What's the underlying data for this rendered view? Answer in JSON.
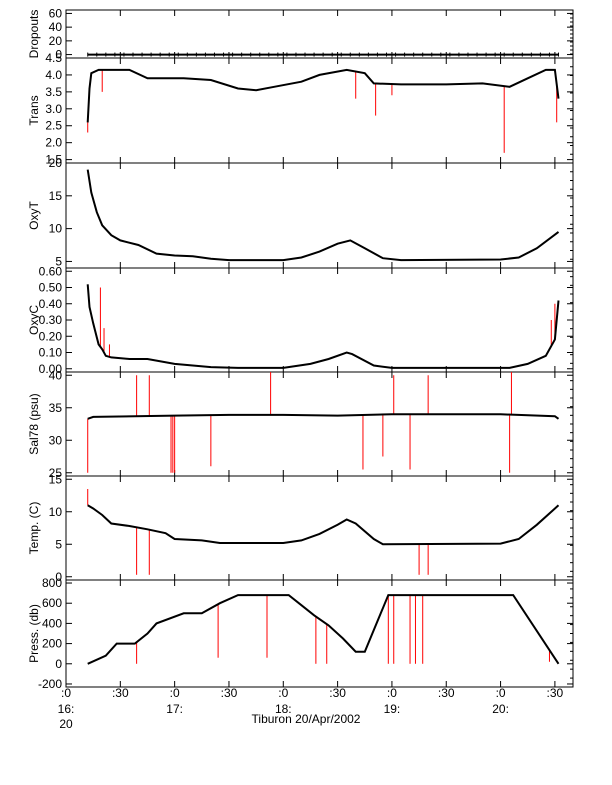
{
  "chart_data": {
    "type": "line",
    "footer_label": "Tiburon 20/Apr/2002",
    "x_axis": {
      "range": [
        "16:00",
        "20:40"
      ],
      "ticks": [
        {
          "t": "16:00",
          "label": ":0",
          "sublabel": "16:",
          "sublabel2": "20"
        },
        {
          "t": "16:30",
          "label": ":30"
        },
        {
          "t": "17:00",
          "label": ":0",
          "sublabel": "17:"
        },
        {
          "t": "17:30",
          "label": ":30"
        },
        {
          "t": "18:00",
          "label": ":0",
          "sublabel": "18:"
        },
        {
          "t": "18:30",
          "label": ":30"
        },
        {
          "t": "19:00",
          "label": ":0",
          "sublabel": "19:"
        },
        {
          "t": "19:30",
          "label": ":30"
        },
        {
          "t": "20:00",
          "label": ":0",
          "sublabel": "20:"
        },
        {
          "t": "20:30",
          "label": ":30"
        }
      ]
    },
    "line_color": "#000000",
    "spike_color": "#ff0000",
    "panels": [
      {
        "ylabel": "Dropouts",
        "ylim": [
          -5,
          65
        ],
        "ticks": [
          0,
          20,
          40,
          60
        ],
        "tick_labels": [
          "0",
          "20",
          "40",
          "60"
        ],
        "series": [
          [
            "16:12",
            0
          ],
          [
            "20:32",
            0
          ]
        ],
        "spikes": []
      },
      {
        "ylabel": "Trans",
        "ylim": [
          1.4,
          4.5
        ],
        "ticks": [
          1.5,
          2.0,
          2.5,
          3.0,
          3.5,
          4.0,
          4.5
        ],
        "tick_labels": [
          "1.5",
          "2.0",
          "2.5",
          "3.0",
          "3.5",
          "4.0",
          "4.5"
        ],
        "series": [
          [
            "16:12",
            2.6
          ],
          [
            "16:13",
            3.6
          ],
          [
            "16:14",
            4.05
          ],
          [
            "16:18",
            4.15
          ],
          [
            "16:35",
            4.15
          ],
          [
            "16:45",
            3.9
          ],
          [
            "17:05",
            3.9
          ],
          [
            "17:20",
            3.85
          ],
          [
            "17:35",
            3.6
          ],
          [
            "17:45",
            3.55
          ],
          [
            "17:55",
            3.65
          ],
          [
            "18:10",
            3.8
          ],
          [
            "18:20",
            4.0
          ],
          [
            "18:35",
            4.15
          ],
          [
            "18:45",
            4.05
          ],
          [
            "18:50",
            3.75
          ],
          [
            "19:05",
            3.72
          ],
          [
            "19:30",
            3.72
          ],
          [
            "19:50",
            3.75
          ],
          [
            "20:05",
            3.65
          ],
          [
            "20:15",
            3.9
          ],
          [
            "20:25",
            4.15
          ],
          [
            "20:30",
            4.15
          ],
          [
            "20:32",
            3.3
          ]
        ],
        "spikes": [
          [
            "16:12",
            2.3
          ],
          [
            "16:20",
            3.5
          ],
          [
            "18:40",
            3.3
          ],
          [
            "18:51",
            2.8
          ],
          [
            "19:00",
            3.4
          ],
          [
            "20:02",
            1.7
          ],
          [
            "20:31",
            2.6
          ]
        ]
      },
      {
        "ylabel": "OxyT",
        "ylim": [
          4,
          20
        ],
        "ticks": [
          5,
          10,
          15,
          20
        ],
        "tick_labels": [
          "5",
          "10",
          "15",
          "20"
        ],
        "series": [
          [
            "16:12",
            19
          ],
          [
            "16:14",
            15.5
          ],
          [
            "16:17",
            12.5
          ],
          [
            "16:20",
            10.5
          ],
          [
            "16:25",
            9.0
          ],
          [
            "16:30",
            8.2
          ],
          [
            "16:40",
            7.5
          ],
          [
            "16:50",
            6.2
          ],
          [
            "17:00",
            5.9
          ],
          [
            "17:10",
            5.8
          ],
          [
            "17:20",
            5.4
          ],
          [
            "17:30",
            5.2
          ],
          [
            "18:00",
            5.2
          ],
          [
            "18:10",
            5.6
          ],
          [
            "18:20",
            6.5
          ],
          [
            "18:30",
            7.7
          ],
          [
            "18:37",
            8.2
          ],
          [
            "18:45",
            7.0
          ],
          [
            "18:55",
            5.5
          ],
          [
            "19:05",
            5.2
          ],
          [
            "20:00",
            5.3
          ],
          [
            "20:10",
            5.6
          ],
          [
            "20:20",
            7.0
          ],
          [
            "20:32",
            9.5
          ]
        ],
        "spikes": []
      },
      {
        "ylabel": "OxyC",
        "ylim": [
          -0.02,
          0.62
        ],
        "ticks": [
          0.0,
          0.1,
          0.2,
          0.3,
          0.4,
          0.5,
          0.6
        ],
        "tick_labels": [
          "0.00",
          "0.10",
          "0.20",
          "0.30",
          "0.40",
          "0.50",
          "0.60"
        ],
        "series": [
          [
            "16:12",
            0.52
          ],
          [
            "16:13",
            0.38
          ],
          [
            "16:15",
            0.28
          ],
          [
            "16:18",
            0.15
          ],
          [
            "16:20",
            0.12
          ],
          [
            "16:22",
            0.08
          ],
          [
            "16:25",
            0.07
          ],
          [
            "16:35",
            0.06
          ],
          [
            "16:45",
            0.06
          ],
          [
            "17:00",
            0.03
          ],
          [
            "17:20",
            0.01
          ],
          [
            "17:35",
            0.005
          ],
          [
            "18:00",
            0.005
          ],
          [
            "18:15",
            0.03
          ],
          [
            "18:25",
            0.06
          ],
          [
            "18:35",
            0.1
          ],
          [
            "18:38",
            0.09
          ],
          [
            "18:50",
            0.02
          ],
          [
            "19:00",
            0.005
          ],
          [
            "20:05",
            0.005
          ],
          [
            "20:15",
            0.03
          ],
          [
            "20:25",
            0.08
          ],
          [
            "20:30",
            0.18
          ],
          [
            "20:32",
            0.42
          ]
        ],
        "spikes": [
          [
            "16:19",
            0.5
          ],
          [
            "16:21",
            0.25
          ],
          [
            "16:24",
            0.15
          ],
          [
            "20:28",
            0.3
          ],
          [
            "20:30",
            0.4
          ]
        ]
      },
      {
        "ylabel": "Sal78 (psu)",
        "ylim": [
          24.5,
          40.5
        ],
        "ticks": [
          25,
          30,
          35,
          40
        ],
        "tick_labels": [
          "25",
          "30",
          "35",
          "40"
        ],
        "series": [
          [
            "16:12",
            33.3
          ],
          [
            "16:15",
            33.6
          ],
          [
            "17:00",
            33.8
          ],
          [
            "17:30",
            33.9
          ],
          [
            "18:00",
            33.9
          ],
          [
            "18:30",
            33.8
          ],
          [
            "19:00",
            34.0
          ],
          [
            "20:00",
            34.0
          ],
          [
            "20:30",
            33.7
          ],
          [
            "20:32",
            33.3
          ]
        ],
        "spikes": [
          [
            "16:12",
            25
          ],
          [
            "16:39",
            40
          ],
          [
            "16:46",
            40
          ],
          [
            "16:58",
            25
          ],
          [
            "16:59",
            25
          ],
          [
            "17:00",
            25
          ],
          [
            "17:20",
            26
          ],
          [
            "17:53",
            40.5
          ],
          [
            "18:44",
            25.5
          ],
          [
            "18:55",
            27.5
          ],
          [
            "19:01",
            40
          ],
          [
            "19:10",
            25.5
          ],
          [
            "19:20",
            40
          ],
          [
            "20:06",
            40.5
          ],
          [
            "20:05",
            25
          ]
        ]
      },
      {
        "ylabel": "Temp. (C)",
        "ylim": [
          -0.5,
          15.5
        ],
        "ticks": [
          0,
          5,
          10,
          15
        ],
        "tick_labels": [
          "0",
          "5",
          "10",
          "15"
        ],
        "series": [
          [
            "16:12",
            11.0
          ],
          [
            "16:15",
            10.5
          ],
          [
            "16:20",
            9.5
          ],
          [
            "16:25",
            8.2
          ],
          [
            "16:35",
            7.8
          ],
          [
            "16:45",
            7.3
          ],
          [
            "16:55",
            6.7
          ],
          [
            "17:00",
            5.8
          ],
          [
            "17:15",
            5.6
          ],
          [
            "17:25",
            5.2
          ],
          [
            "18:00",
            5.2
          ],
          [
            "18:10",
            5.6
          ],
          [
            "18:20",
            6.6
          ],
          [
            "18:30",
            8.0
          ],
          [
            "18:35",
            8.8
          ],
          [
            "18:40",
            8.2
          ],
          [
            "18:50",
            5.8
          ],
          [
            "18:55",
            5.0
          ],
          [
            "20:00",
            5.1
          ],
          [
            "20:10",
            5.8
          ],
          [
            "20:20",
            8.0
          ],
          [
            "20:32",
            11.0
          ]
        ],
        "spikes": [
          [
            "16:12",
            13.5
          ],
          [
            "16:39",
            0.3
          ],
          [
            "16:46",
            0.3
          ],
          [
            "19:15",
            0.3
          ],
          [
            "19:20",
            0.3
          ]
        ]
      },
      {
        "ylabel": "Press. (db)",
        "ylim": [
          -230,
          830
        ],
        "ticks": [
          -200,
          0,
          200,
          400,
          600,
          800
        ],
        "tick_labels": [
          "-200",
          "0",
          "200",
          "400",
          "600",
          "800"
        ],
        "series": [
          [
            "16:12",
            0
          ],
          [
            "16:22",
            80
          ],
          [
            "16:28",
            200
          ],
          [
            "16:38",
            200
          ],
          [
            "16:45",
            300
          ],
          [
            "16:50",
            400
          ],
          [
            "17:05",
            500
          ],
          [
            "17:15",
            500
          ],
          [
            "17:25",
            600
          ],
          [
            "17:35",
            680
          ],
          [
            "18:03",
            680
          ],
          [
            "18:10",
            580
          ],
          [
            "18:17",
            480
          ],
          [
            "18:25",
            380
          ],
          [
            "18:33",
            250
          ],
          [
            "18:40",
            120
          ],
          [
            "18:45",
            120
          ],
          [
            "18:58",
            680
          ],
          [
            "20:07",
            680
          ],
          [
            "20:32",
            0
          ]
        ],
        "spikes": [
          [
            "16:39",
            0
          ],
          [
            "17:24",
            60
          ],
          [
            "17:51",
            60
          ],
          [
            "18:18",
            0
          ],
          [
            "18:24",
            0
          ],
          [
            "18:58",
            0
          ],
          [
            "19:01",
            0
          ],
          [
            "19:10",
            0
          ],
          [
            "19:13",
            0
          ],
          [
            "19:17",
            0
          ],
          [
            "20:27",
            20
          ]
        ]
      }
    ]
  }
}
